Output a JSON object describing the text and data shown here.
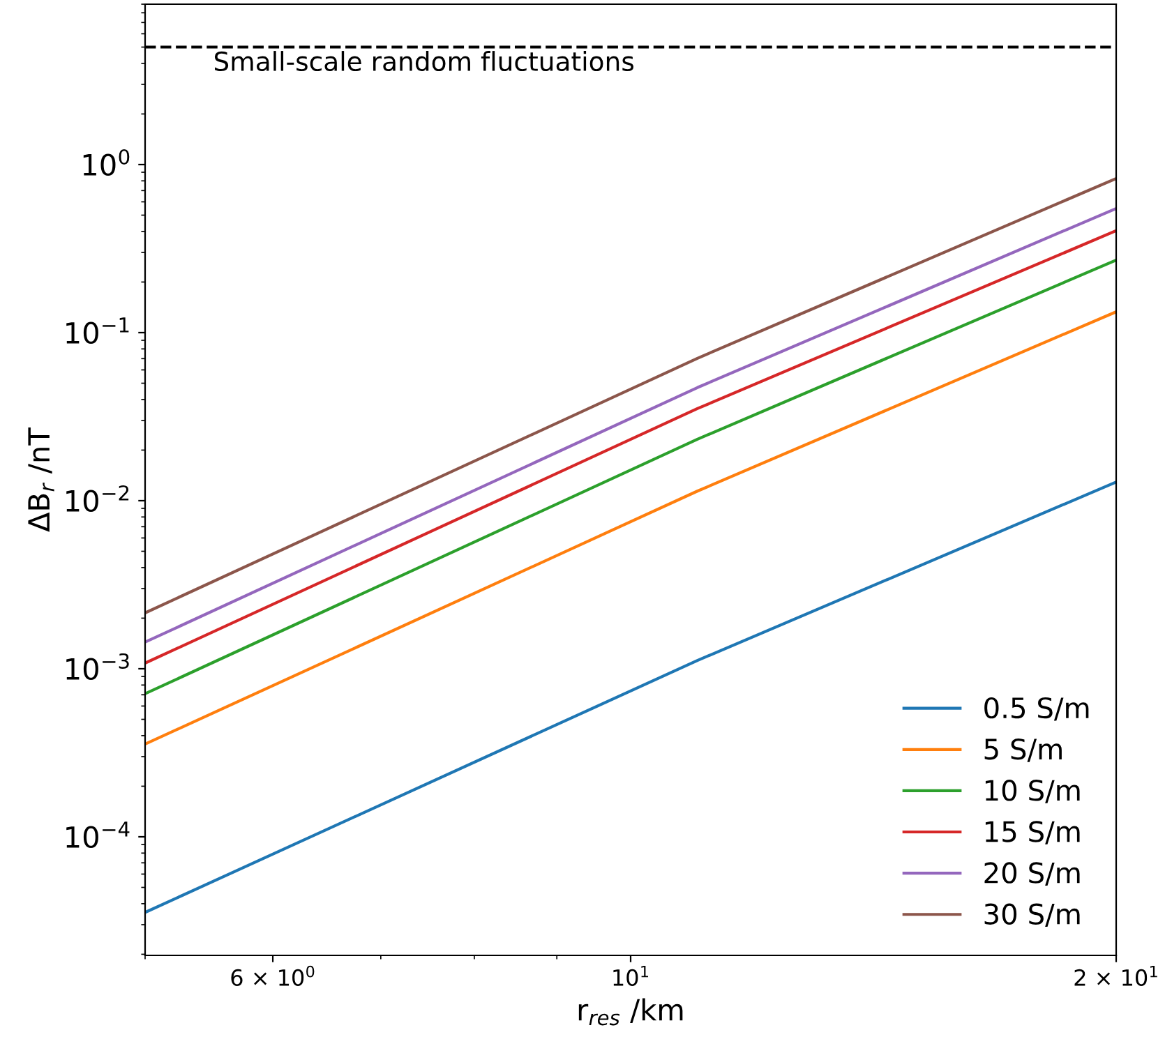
{
  "chart_data": {
    "type": "line",
    "xlabel": "r$_{res}$ /km",
    "ylabel": "ΔB$_{r}$ /nT",
    "x": [
      5,
      11,
      20
    ],
    "log": "xy",
    "legend": "lower right",
    "grid": false,
    "line_style": "solid",
    "marker": "none",
    "xlim": [
      5,
      20
    ],
    "ylim": [
      1.97e-05,
      9.0
    ],
    "xticks": [
      {
        "value": 6,
        "label": "6 × 10$^{0}$"
      },
      {
        "value": 10,
        "label": "10$^{1}$"
      },
      {
        "value": 20,
        "label": "2 × 10$^{1}$"
      }
    ],
    "yticks": [
      {
        "value": 0.0001,
        "label": "10$^{−4}$"
      },
      {
        "value": 0.001,
        "label": "10$^{−3}$"
      },
      {
        "value": 0.01,
        "label": "10$^{−2}$"
      },
      {
        "value": 0.1,
        "label": "10$^{−1}$"
      },
      {
        "value": 1,
        "label": "10$^{0}$"
      }
    ],
    "ref_lines": [
      {
        "axis": "y",
        "value": 5.0,
        "label": "Small-scale random fluctuations",
        "color": "#000000",
        "line_style": "dashed"
      }
    ],
    "series": [
      {
        "name": "0.5 S/m",
        "color": "#1f77b4",
        "values": [
          3.55e-05,
          0.00112,
          0.0129
        ]
      },
      {
        "name": "5 S/m",
        "color": "#ff7f0e",
        "values": [
          0.000356,
          0.0114,
          0.133
        ]
      },
      {
        "name": "10 S/m",
        "color": "#2ca02c",
        "values": [
          0.00071,
          0.0232,
          0.27
        ]
      },
      {
        "name": "15 S/m",
        "color": "#d62728",
        "values": [
          0.00108,
          0.0353,
          0.404
        ]
      },
      {
        "name": "20 S/m",
        "color": "#9467bd",
        "values": [
          0.00144,
          0.0471,
          0.548
        ]
      },
      {
        "name": "30 S/m",
        "color": "#8c564b",
        "values": [
          0.00215,
          0.0703,
          0.826
        ]
      }
    ]
  }
}
